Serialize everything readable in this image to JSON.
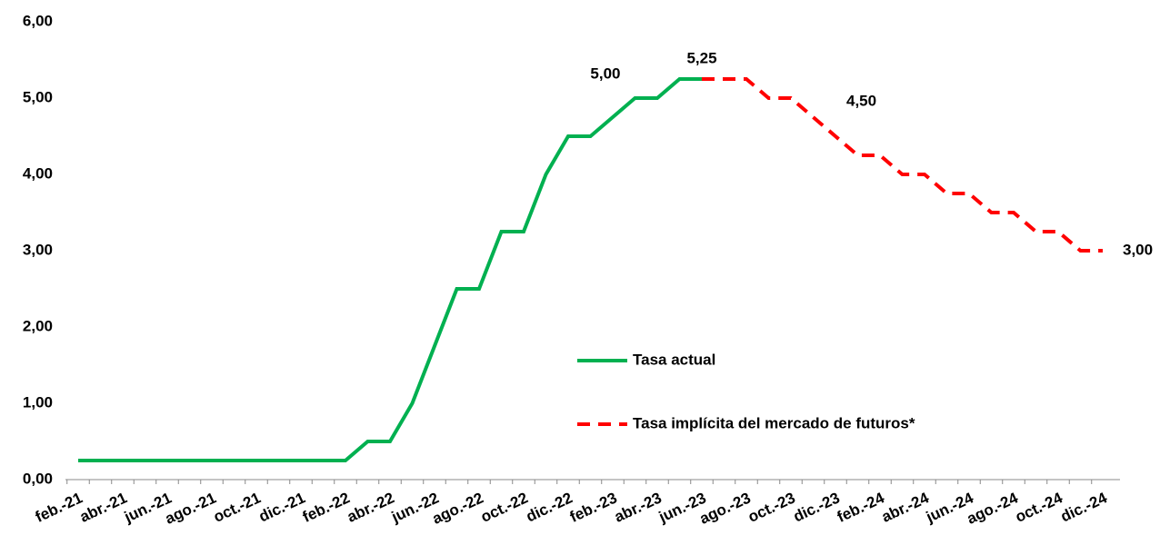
{
  "chart_data": {
    "type": "line",
    "categories": [
      "feb.-21",
      null,
      "abr.-21",
      null,
      "jun.-21",
      null,
      "ago.-21",
      null,
      "oct.-21",
      null,
      "dic.-21",
      null,
      "feb.-22",
      null,
      "abr.-22",
      null,
      "jun.-22",
      null,
      "ago.-22",
      null,
      "oct.-22",
      null,
      "dic.-22",
      null,
      "feb.-23",
      null,
      "abr.-23",
      null,
      "jun.-23",
      null,
      "ago.-23",
      null,
      "oct.-23",
      null,
      "dic.-23",
      null,
      "feb.-24",
      null,
      "abr.-24",
      null,
      "jun.-24",
      null,
      "ago.-24",
      null,
      "oct.-24",
      null,
      "dic.-24"
    ],
    "series": [
      {
        "name": "Tasa actual",
        "color": "#00b050",
        "dash": false,
        "values": [
          0.25,
          0.25,
          0.25,
          0.25,
          0.25,
          0.25,
          0.25,
          0.25,
          0.25,
          0.25,
          0.25,
          0.25,
          0.25,
          0.5,
          0.5,
          1.0,
          1.75,
          2.5,
          2.5,
          3.25,
          3.25,
          4.0,
          4.5,
          4.5,
          4.75,
          5.0,
          5.0,
          5.25,
          5.25,
          null,
          null,
          null,
          null,
          null,
          null,
          null,
          null,
          null,
          null,
          null,
          null,
          null,
          null,
          null,
          null,
          null,
          null
        ],
        "value_labels": [
          null,
          null,
          null,
          null,
          null,
          null,
          null,
          null,
          null,
          null,
          null,
          null,
          null,
          null,
          null,
          null,
          null,
          null,
          null,
          null,
          null,
          null,
          null,
          null,
          null,
          "5,00",
          null,
          null,
          null,
          null,
          null,
          null,
          null,
          null,
          null,
          null,
          null,
          null,
          null,
          null,
          null,
          null,
          null,
          null,
          null,
          null,
          null
        ]
      },
      {
        "name": "Tasa implícita del mercado de futuros*",
        "color": "#ff0000",
        "dash": true,
        "values": [
          null,
          null,
          null,
          null,
          null,
          null,
          null,
          null,
          null,
          null,
          null,
          null,
          null,
          null,
          null,
          null,
          null,
          null,
          null,
          null,
          null,
          null,
          null,
          null,
          null,
          null,
          null,
          null,
          5.25,
          5.25,
          5.25,
          5.0,
          5.0,
          4.75,
          4.5,
          4.25,
          4.25,
          4.0,
          4.0,
          3.75,
          3.75,
          3.5,
          3.5,
          3.25,
          3.25,
          3.0,
          3.0
        ],
        "value_labels": [
          null,
          null,
          null,
          null,
          null,
          null,
          null,
          null,
          null,
          null,
          null,
          null,
          null,
          null,
          null,
          null,
          null,
          null,
          null,
          null,
          null,
          null,
          null,
          null,
          null,
          null,
          null,
          null,
          "5,25",
          null,
          null,
          null,
          null,
          null,
          "4,50",
          null,
          null,
          null,
          null,
          null,
          null,
          null,
          null,
          null,
          null,
          null,
          "3,00"
        ]
      }
    ],
    "ylim": [
      0,
      6
    ],
    "yticks": [
      {
        "value": 0,
        "label": "0,00"
      },
      {
        "value": 1,
        "label": "1,00"
      },
      {
        "value": 2,
        "label": "2,00"
      },
      {
        "value": 3,
        "label": "3,00"
      },
      {
        "value": 4,
        "label": "4,00"
      },
      {
        "value": 5,
        "label": "5,00"
      },
      {
        "value": 6,
        "label": "6,00"
      }
    ],
    "grid": false
  }
}
